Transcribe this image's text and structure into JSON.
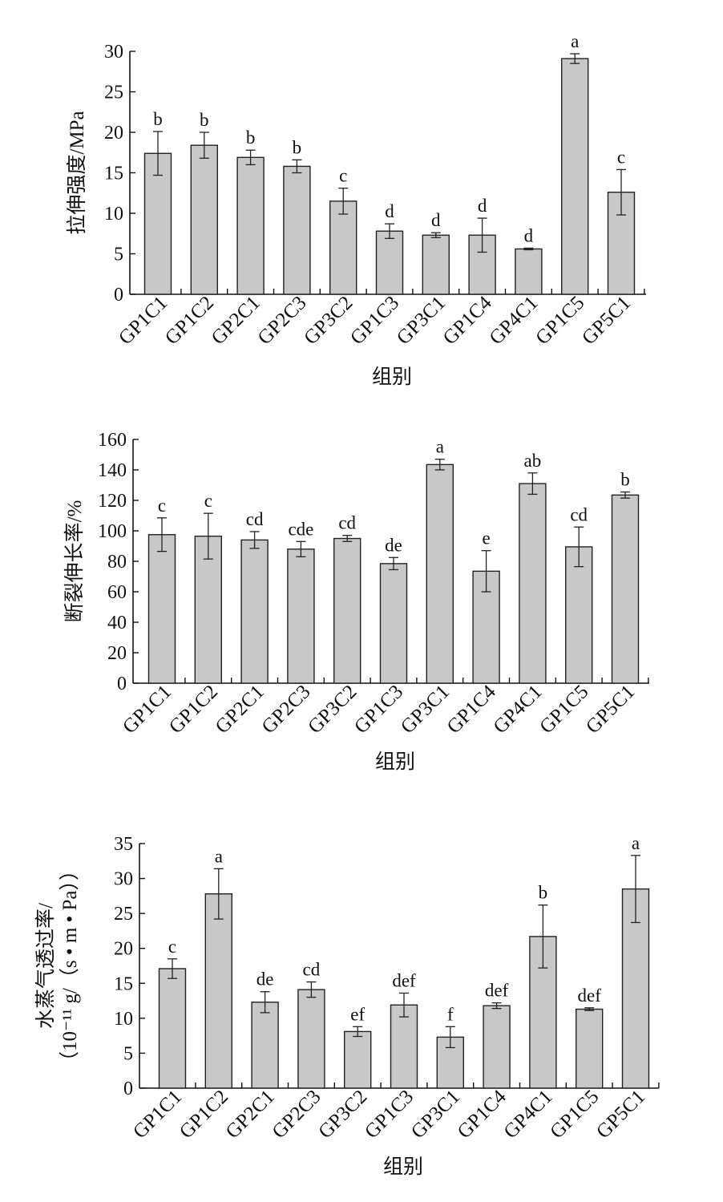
{
  "figure": {
    "panels": [
      {
        "ylabel_lines": [
          "拉伸强度/MPa"
        ],
        "xlabel": "组别"
      },
      {
        "ylabel_lines": [
          "断裂伸长率/%"
        ],
        "xlabel": "组别"
      },
      {
        "ylabel_lines": [
          "水蒸气透过率/",
          "（10⁻¹¹ g/（s • m • Pa））"
        ],
        "xlabel": "组别"
      }
    ]
  },
  "chart_data": [
    {
      "type": "bar",
      "xlabel": "组别",
      "ylabel": "拉伸强度/MPa",
      "ylim": [
        0,
        30
      ],
      "yticks": [
        0,
        5,
        10,
        15,
        20,
        25,
        30
      ],
      "categories": [
        "GP1C1",
        "GP1C2",
        "GP2C1",
        "GP2C3",
        "GP3C2",
        "GP1C3",
        "GP3C1",
        "GP1C4",
        "GP4C1",
        "GP1C5",
        "GP5C1"
      ],
      "values": [
        17.4,
        18.4,
        16.9,
        15.8,
        11.5,
        7.8,
        7.3,
        7.3,
        5.6,
        29.1,
        12.6
      ],
      "errors": [
        2.7,
        1.6,
        0.9,
        0.8,
        1.6,
        0.9,
        0.3,
        2.1,
        0.1,
        0.6,
        2.8
      ],
      "significance": [
        "b",
        "b",
        "b",
        "b",
        "c",
        "d",
        "d",
        "d",
        "d",
        "a",
        "c"
      ]
    },
    {
      "type": "bar",
      "xlabel": "组别",
      "ylabel": "断裂伸长率/%",
      "ylim": [
        0,
        160
      ],
      "yticks": [
        0,
        20,
        40,
        60,
        80,
        100,
        120,
        140,
        160
      ],
      "categories": [
        "GP1C1",
        "GP1C2",
        "GP2C1",
        "GP2C3",
        "GP3C2",
        "GP1C3",
        "GP3C1",
        "GP1C4",
        "GP4C1",
        "GP1C5",
        "GP5C1"
      ],
      "values": [
        97.5,
        96.5,
        94,
        88,
        95,
        78.5,
        143.5,
        73.5,
        131,
        89.5,
        123.5
      ],
      "errors": [
        11,
        15,
        5.5,
        5,
        2,
        4,
        3.5,
        13.5,
        7,
        13,
        2
      ],
      "significance": [
        "c",
        "c",
        "cd",
        "cde",
        "cd",
        "de",
        "a",
        "e",
        "ab",
        "cd",
        "b"
      ]
    },
    {
      "type": "bar",
      "xlabel": "组别",
      "ylabel": "水蒸气透过率/（10⁻¹¹ g/（s • m • Pa））",
      "ylim": [
        0,
        35
      ],
      "yticks": [
        0,
        5,
        10,
        15,
        20,
        25,
        30,
        35
      ],
      "categories": [
        "GP1C1",
        "GP1C2",
        "GP2C1",
        "GP2C3",
        "GP3C2",
        "GP1C3",
        "GP3C1",
        "GP1C4",
        "GP4C1",
        "GP1C5",
        "GP5C1"
      ],
      "values": [
        17.1,
        27.8,
        12.3,
        14.1,
        8.1,
        11.9,
        7.3,
        11.8,
        21.7,
        11.3,
        28.5
      ],
      "errors": [
        1.4,
        3.6,
        1.5,
        1.1,
        0.7,
        1.7,
        1.5,
        0.4,
        4.5,
        0.2,
        4.8
      ],
      "significance": [
        "c",
        "a",
        "de",
        "cd",
        "ef",
        "def",
        "f",
        "def",
        "b",
        "def",
        "a"
      ]
    }
  ]
}
